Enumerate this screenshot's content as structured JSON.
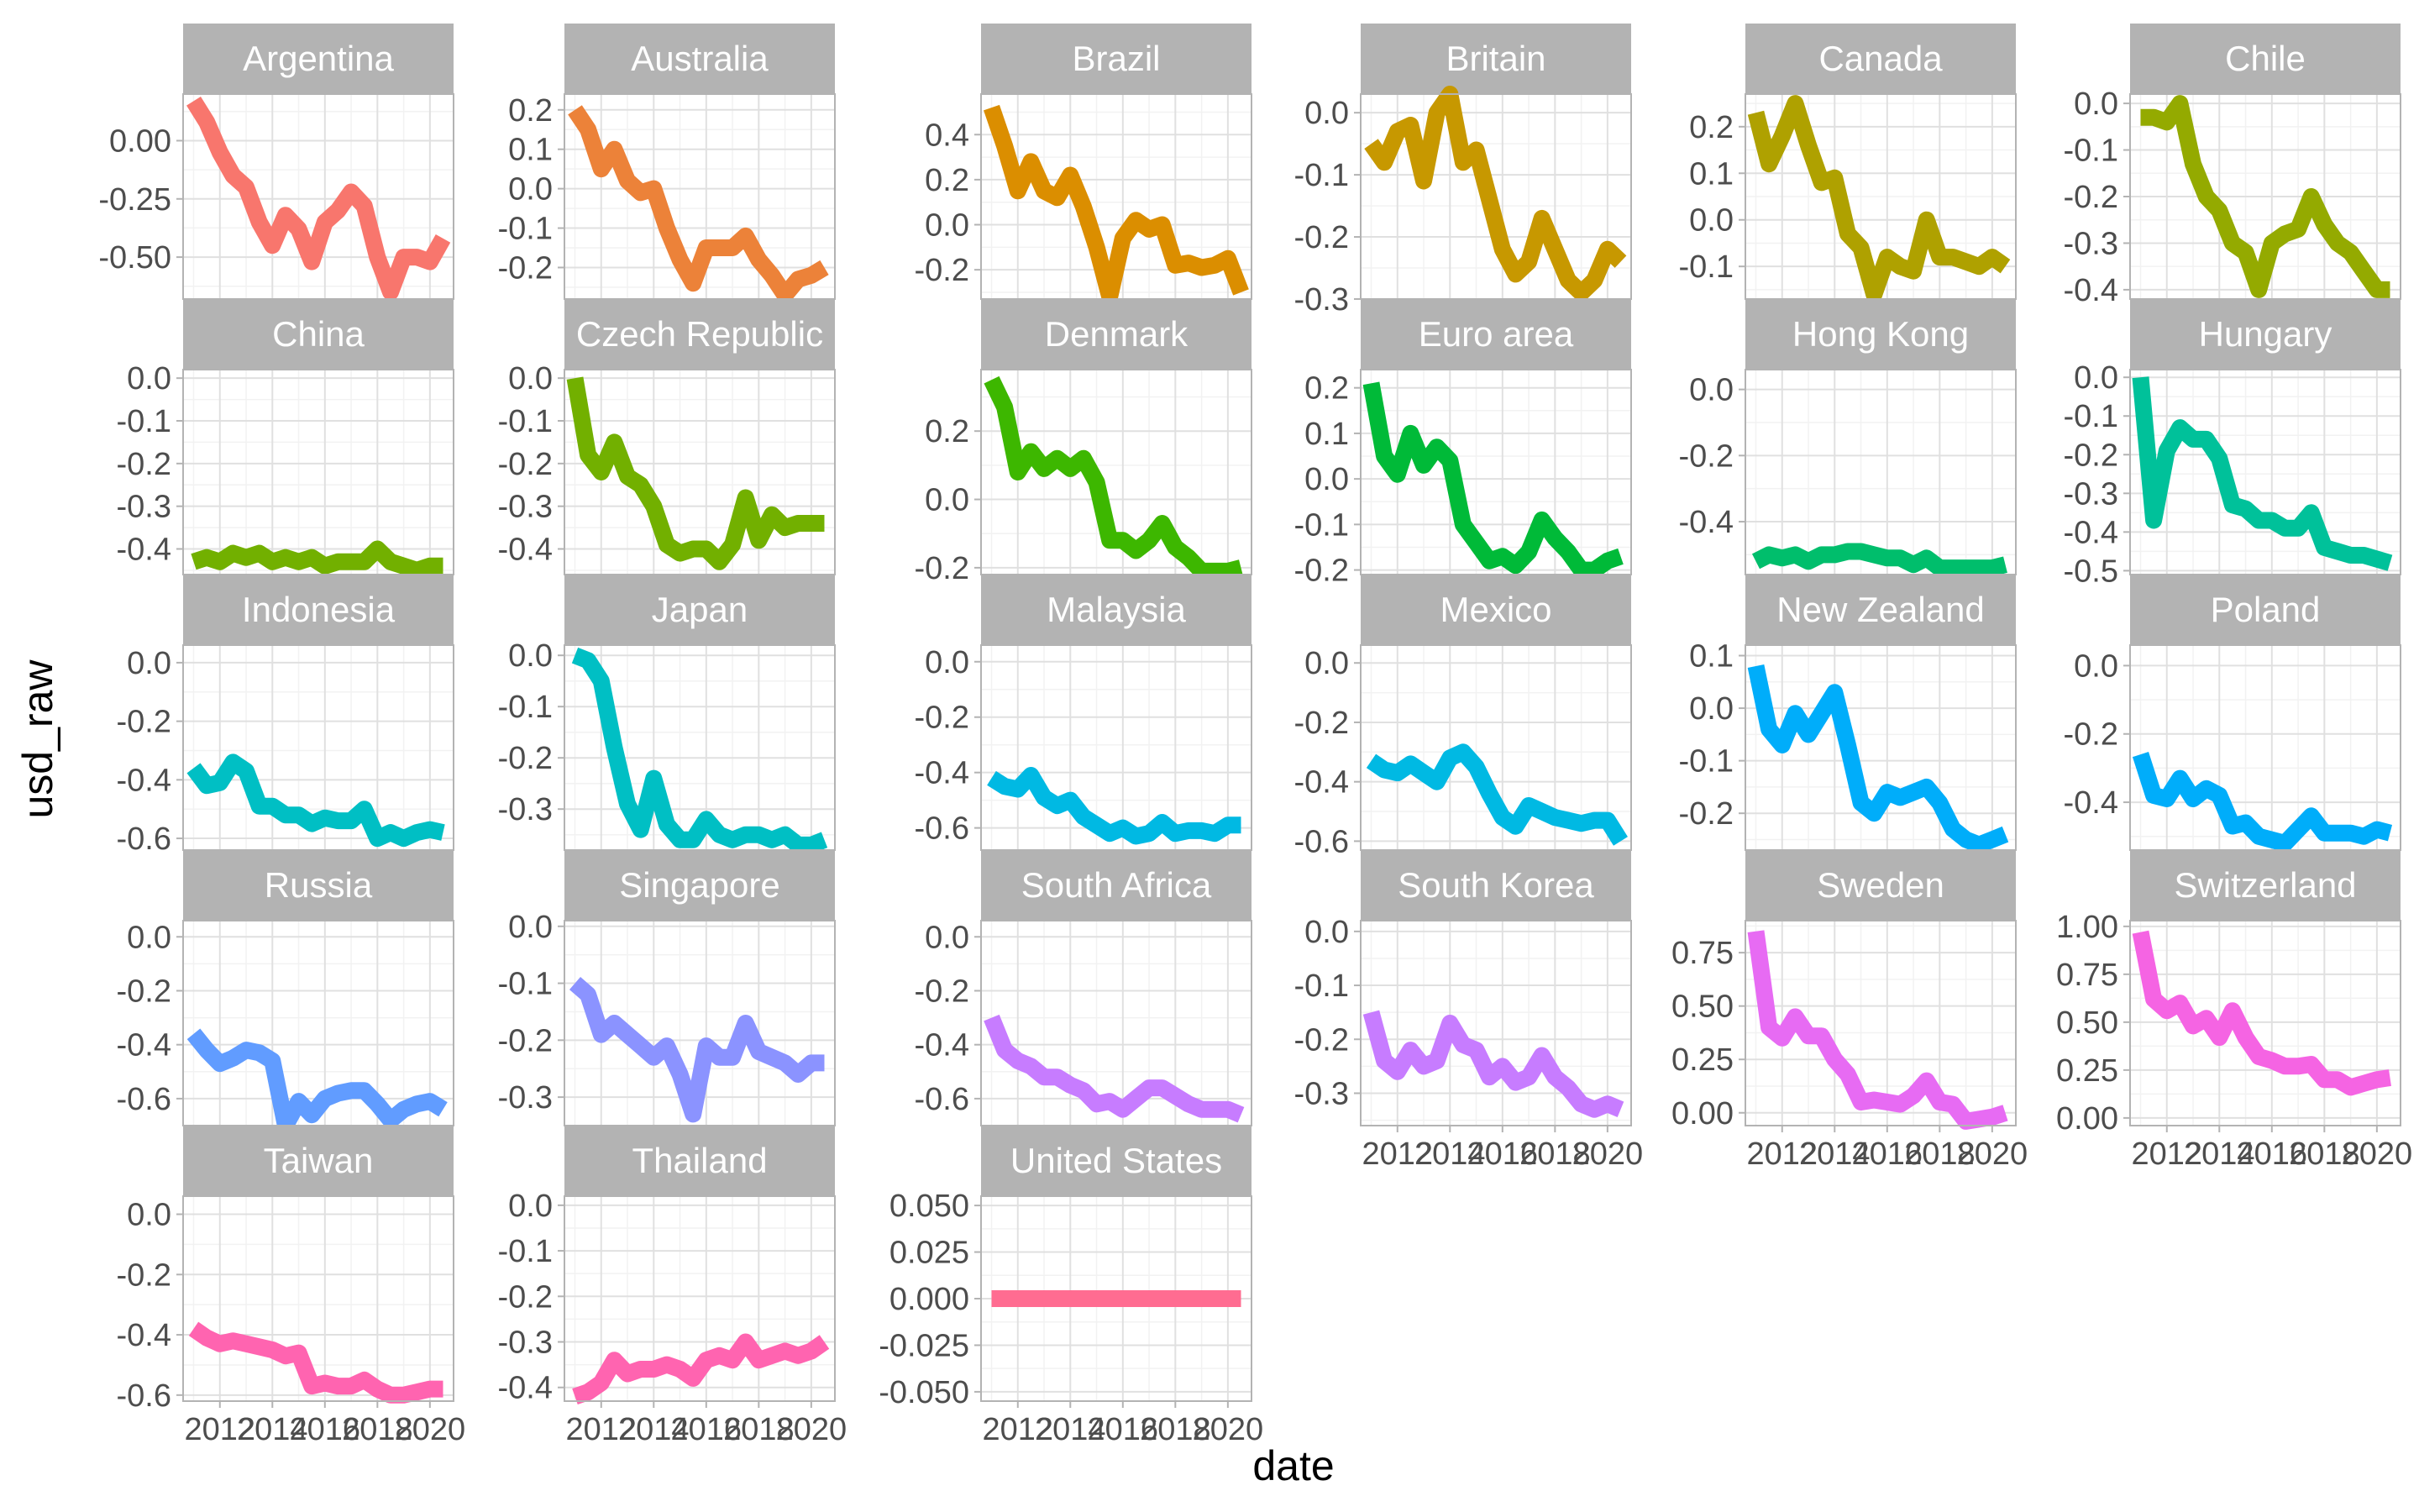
{
  "chart_data": {
    "type": "line",
    "xlabel": "date",
    "ylabel": "usd_raw",
    "x": [
      2011.0,
      2011.5,
      2012.0,
      2012.5,
      2013.0,
      2013.5,
      2014.0,
      2014.5,
      2015.0,
      2015.5,
      2016.0,
      2016.5,
      2017.0,
      2017.5,
      2018.0,
      2018.5,
      2019.0,
      2019.5,
      2020.0,
      2020.5
    ],
    "x_ticks": [
      2012,
      2014,
      2016,
      2018,
      2020
    ],
    "xlim": [
      2010.6,
      2020.9
    ],
    "grid": true,
    "legend": "none",
    "panels": [
      {
        "name": "Argentina",
        "color": "#F8766D",
        "ylim": [
          -0.68,
          0.2
        ],
        "y_ticks": [
          0.0,
          -0.25,
          -0.5
        ],
        "y_tick_labels": [
          "0.00",
          "-0.25",
          "-0.50"
        ],
        "values": [
          0.17,
          0.08,
          -0.05,
          -0.15,
          -0.2,
          -0.35,
          -0.45,
          -0.32,
          -0.38,
          -0.52,
          -0.35,
          -0.3,
          -0.22,
          -0.28,
          -0.5,
          -0.65,
          -0.5,
          -0.5,
          -0.52,
          -0.42
        ]
      },
      {
        "name": "Australia",
        "color": "#EC8239",
        "ylim": [
          -0.28,
          0.24
        ],
        "y_ticks": [
          0.2,
          0.1,
          0.0,
          -0.1,
          -0.2
        ],
        "y_tick_labels": [
          "0.2",
          "0.1",
          "0.0",
          "-0.1",
          "-0.2"
        ],
        "values": [
          0.2,
          0.15,
          0.05,
          0.1,
          0.02,
          -0.01,
          0.0,
          -0.1,
          -0.18,
          -0.24,
          -0.15,
          -0.15,
          -0.15,
          -0.12,
          -0.18,
          -0.22,
          -0.27,
          -0.23,
          -0.22,
          -0.2
        ]
      },
      {
        "name": "Brazil",
        "color": "#DB8E00",
        "ylim": [
          -0.33,
          0.58
        ],
        "y_ticks": [
          0.4,
          0.2,
          0.0,
          -0.2
        ],
        "y_tick_labels": [
          "0.4",
          "0.2",
          "0.0",
          "-0.2"
        ],
        "values": [
          0.52,
          0.35,
          0.15,
          0.28,
          0.15,
          0.12,
          0.22,
          0.08,
          -0.1,
          -0.32,
          -0.06,
          0.02,
          -0.02,
          0.0,
          -0.18,
          -0.17,
          -0.19,
          -0.18,
          -0.15,
          -0.3
        ]
      },
      {
        "name": "Britain",
        "color": "#C79800",
        "ylim": [
          -0.3,
          0.03
        ],
        "y_ticks": [
          0.0,
          -0.1,
          -0.2,
          -0.3
        ],
        "y_tick_labels": [
          "0.0",
          "-0.1",
          "-0.2",
          "-0.3"
        ],
        "values": [
          -0.05,
          -0.08,
          -0.03,
          -0.02,
          -0.11,
          0.0,
          0.03,
          -0.08,
          -0.06,
          -0.14,
          -0.22,
          -0.26,
          -0.24,
          -0.17,
          -0.22,
          -0.27,
          -0.29,
          -0.27,
          -0.22,
          -0.24
        ]
      },
      {
        "name": "Canada",
        "color": "#AFA100",
        "ylim": [
          -0.17,
          0.27
        ],
        "y_ticks": [
          0.2,
          0.1,
          0.0,
          -0.1
        ],
        "y_tick_labels": [
          "0.2",
          "0.1",
          "0.0",
          "-0.1"
        ],
        "values": [
          0.23,
          0.12,
          0.18,
          0.25,
          0.16,
          0.08,
          0.09,
          -0.03,
          -0.06,
          -0.16,
          -0.08,
          -0.1,
          -0.11,
          0.0,
          -0.08,
          -0.08,
          -0.09,
          -0.1,
          -0.08,
          -0.1
        ]
      },
      {
        "name": "Chile",
        "color": "#94AA00",
        "ylim": [
          -0.42,
          0.02
        ],
        "y_ticks": [
          0.0,
          -0.1,
          -0.2,
          -0.3,
          -0.4
        ],
        "y_tick_labels": [
          "0.0",
          "-0.1",
          "-0.2",
          "-0.3",
          "-0.4"
        ],
        "values": [
          -0.03,
          -0.03,
          -0.04,
          0.0,
          -0.13,
          -0.2,
          -0.23,
          -0.3,
          -0.32,
          -0.4,
          -0.3,
          -0.28,
          -0.27,
          -0.2,
          -0.26,
          -0.3,
          -0.32,
          -0.36,
          -0.4,
          -0.4
        ]
      },
      {
        "name": "China",
        "color": "#72B000",
        "ylim": [
          -0.46,
          0.02
        ],
        "y_ticks": [
          0.0,
          -0.1,
          -0.2,
          -0.3,
          -0.4
        ],
        "y_tick_labels": [
          "0.0",
          "-0.1",
          "-0.2",
          "-0.3",
          "-0.4"
        ],
        "values": [
          -0.43,
          -0.42,
          -0.43,
          -0.41,
          -0.42,
          -0.41,
          -0.43,
          -0.42,
          -0.43,
          -0.42,
          -0.44,
          -0.43,
          -0.43,
          -0.43,
          -0.4,
          -0.43,
          -0.44,
          -0.45,
          -0.44,
          -0.44
        ]
      },
      {
        "name": "Czech Republic",
        "color": "#72B000",
        "ylim": [
          -0.46,
          0.02
        ],
        "y_ticks": [
          0.0,
          -0.1,
          -0.2,
          -0.3,
          -0.4
        ],
        "y_tick_labels": [
          "0.0",
          "-0.1",
          "-0.2",
          "-0.3",
          "-0.4"
        ],
        "values": [
          0.0,
          -0.18,
          -0.22,
          -0.15,
          -0.23,
          -0.25,
          -0.3,
          -0.39,
          -0.41,
          -0.4,
          -0.4,
          -0.43,
          -0.39,
          -0.28,
          -0.38,
          -0.32,
          -0.35,
          -0.34,
          -0.34,
          -0.34
        ]
      },
      {
        "name": "Denmark",
        "color": "#3DB700",
        "ylim": [
          -0.22,
          0.38
        ],
        "y_ticks": [
          0.2,
          0.0,
          -0.2
        ],
        "y_tick_labels": [
          "0.2",
          "0.0",
          "-0.2"
        ],
        "values": [
          0.35,
          0.27,
          0.08,
          0.14,
          0.09,
          0.12,
          0.09,
          0.12,
          0.05,
          -0.12,
          -0.12,
          -0.15,
          -0.12,
          -0.07,
          -0.14,
          -0.17,
          -0.21,
          -0.21,
          -0.21,
          -0.2
        ]
      },
      {
        "name": "Euro area",
        "color": "#00BA38",
        "ylim": [
          -0.21,
          0.24
        ],
        "y_ticks": [
          0.2,
          0.1,
          0.0,
          -0.1,
          -0.2
        ],
        "y_tick_labels": [
          "0.2",
          "0.1",
          "0.0",
          "-0.1",
          "-0.2"
        ],
        "values": [
          0.21,
          0.05,
          0.01,
          0.1,
          0.03,
          0.07,
          0.04,
          -0.1,
          -0.14,
          -0.18,
          -0.17,
          -0.19,
          -0.16,
          -0.09,
          -0.13,
          -0.16,
          -0.2,
          -0.2,
          -0.18,
          -0.17
        ]
      },
      {
        "name": "Hong Kong",
        "color": "#00BE6C",
        "ylim": [
          -0.56,
          0.06
        ],
        "y_ticks": [
          0.0,
          -0.2,
          -0.4
        ],
        "y_tick_labels": [
          "0.0",
          "-0.2",
          "-0.4"
        ],
        "values": [
          -0.52,
          -0.5,
          -0.51,
          -0.5,
          -0.52,
          -0.5,
          -0.5,
          -0.49,
          -0.49,
          -0.5,
          -0.51,
          -0.51,
          -0.53,
          -0.51,
          -0.54,
          -0.54,
          -0.54,
          -0.54,
          -0.54,
          -0.53
        ]
      },
      {
        "name": "Hungary",
        "color": "#00C19A",
        "ylim": [
          -0.51,
          0.02
        ],
        "y_ticks": [
          0.0,
          -0.1,
          -0.2,
          -0.3,
          -0.4,
          -0.5
        ],
        "y_tick_labels": [
          "0.0",
          "-0.1",
          "-0.2",
          "-0.3",
          "-0.4",
          "-0.5"
        ],
        "values": [
          0.0,
          -0.37,
          -0.19,
          -0.13,
          -0.16,
          -0.16,
          -0.21,
          -0.33,
          -0.34,
          -0.37,
          -0.37,
          -0.39,
          -0.39,
          -0.35,
          -0.44,
          -0.45,
          -0.46,
          -0.46,
          -0.47,
          -0.48
        ]
      },
      {
        "name": "Indonesia",
        "color": "#00BFC4",
        "ylim": [
          -0.64,
          0.06
        ],
        "y_ticks": [
          0.0,
          -0.2,
          -0.4,
          -0.6
        ],
        "y_tick_labels": [
          "0.0",
          "-0.2",
          "-0.4",
          "-0.6"
        ],
        "values": [
          -0.36,
          -0.42,
          -0.41,
          -0.34,
          -0.37,
          -0.49,
          -0.49,
          -0.52,
          -0.52,
          -0.55,
          -0.53,
          -0.54,
          -0.54,
          -0.5,
          -0.6,
          -0.58,
          -0.6,
          -0.58,
          -0.57,
          -0.58
        ]
      },
      {
        "name": "Japan",
        "color": "#00BFC4",
        "ylim": [
          -0.38,
          0.02
        ],
        "y_ticks": [
          0.0,
          -0.1,
          -0.2,
          -0.3
        ],
        "y_tick_labels": [
          "0.0",
          "-0.1",
          "-0.2",
          "-0.3"
        ],
        "values": [
          0.0,
          -0.01,
          -0.05,
          -0.18,
          -0.29,
          -0.34,
          -0.24,
          -0.33,
          -0.36,
          -0.36,
          -0.32,
          -0.35,
          -0.36,
          -0.35,
          -0.35,
          -0.36,
          -0.35,
          -0.37,
          -0.37,
          -0.36
        ]
      },
      {
        "name": "Malaysia",
        "color": "#00B9E3",
        "ylim": [
          -0.68,
          0.06
        ],
        "y_ticks": [
          0.0,
          -0.2,
          -0.4,
          -0.6
        ],
        "y_tick_labels": [
          "0.0",
          "-0.2",
          "-0.4",
          "-0.6"
        ],
        "values": [
          -0.42,
          -0.45,
          -0.46,
          -0.41,
          -0.49,
          -0.52,
          -0.5,
          -0.56,
          -0.59,
          -0.62,
          -0.6,
          -0.63,
          -0.62,
          -0.58,
          -0.62,
          -0.61,
          -0.61,
          -0.62,
          -0.59,
          -0.59
        ]
      },
      {
        "name": "Mexico",
        "color": "#00B9E3",
        "ylim": [
          -0.63,
          0.06
        ],
        "y_ticks": [
          0.0,
          -0.2,
          -0.4,
          -0.6
        ],
        "y_tick_labels": [
          "0.0",
          "-0.2",
          "-0.4",
          "-0.6"
        ],
        "values": [
          -0.33,
          -0.36,
          -0.37,
          -0.34,
          -0.37,
          -0.4,
          -0.32,
          -0.3,
          -0.35,
          -0.44,
          -0.52,
          -0.55,
          -0.48,
          -0.5,
          -0.52,
          -0.53,
          -0.54,
          -0.53,
          -0.53,
          -0.6
        ]
      },
      {
        "name": "New Zealand",
        "color": "#00ADFA",
        "ylim": [
          -0.27,
          0.12
        ],
        "y_ticks": [
          0.1,
          0.0,
          -0.1,
          -0.2
        ],
        "y_tick_labels": [
          "0.1",
          "0.0",
          "-0.1",
          "-0.2"
        ],
        "values": [
          0.08,
          -0.04,
          -0.07,
          -0.01,
          -0.05,
          -0.01,
          0.03,
          -0.07,
          -0.18,
          -0.2,
          -0.16,
          -0.17,
          -0.16,
          -0.15,
          -0.18,
          -0.23,
          -0.25,
          -0.26,
          -0.25,
          -0.24
        ]
      },
      {
        "name": "Poland",
        "color": "#00ADFA",
        "ylim": [
          -0.54,
          0.06
        ],
        "y_ticks": [
          0.0,
          -0.2,
          -0.4
        ],
        "y_tick_labels": [
          "0.0",
          "-0.2",
          "-0.4"
        ],
        "values": [
          -0.26,
          -0.38,
          -0.39,
          -0.33,
          -0.39,
          -0.36,
          -0.38,
          -0.47,
          -0.46,
          -0.5,
          -0.51,
          -0.52,
          -0.48,
          -0.44,
          -0.49,
          -0.49,
          -0.49,
          -0.5,
          -0.48,
          -0.49
        ]
      },
      {
        "name": "Russia",
        "color": "#619CFF",
        "ylim": [
          -0.7,
          0.06
        ],
        "y_ticks": [
          0.0,
          -0.2,
          -0.4,
          -0.6
        ],
        "y_tick_labels": [
          "0.0",
          "-0.2",
          "-0.4",
          "-0.6"
        ],
        "values": [
          -0.36,
          -0.42,
          -0.47,
          -0.45,
          -0.42,
          -0.43,
          -0.46,
          -0.7,
          -0.61,
          -0.66,
          -0.6,
          -0.58,
          -0.57,
          -0.57,
          -0.62,
          -0.68,
          -0.64,
          -0.62,
          -0.61,
          -0.64
        ]
      },
      {
        "name": "Singapore",
        "color": "#8B93FF",
        "ylim": [
          -0.35,
          0.01
        ],
        "y_ticks": [
          0.0,
          -0.1,
          -0.2,
          -0.3
        ],
        "y_tick_labels": [
          "0.0",
          "-0.1",
          "-0.2",
          "-0.3"
        ],
        "values": [
          -0.1,
          -0.12,
          -0.19,
          -0.17,
          -0.19,
          -0.21,
          -0.23,
          -0.21,
          -0.26,
          -0.33,
          -0.21,
          -0.23,
          -0.23,
          -0.17,
          -0.22,
          -0.23,
          -0.24,
          -0.26,
          -0.24,
          -0.24
        ]
      },
      {
        "name": "South Africa",
        "color": "#C77CFF",
        "ylim": [
          -0.7,
          0.06
        ],
        "y_ticks": [
          0.0,
          -0.2,
          -0.4,
          -0.6
        ],
        "y_tick_labels": [
          "0.0",
          "-0.2",
          "-0.4",
          "-0.6"
        ],
        "values": [
          -0.3,
          -0.42,
          -0.46,
          -0.48,
          -0.52,
          -0.52,
          -0.55,
          -0.57,
          -0.62,
          -0.61,
          -0.64,
          -0.6,
          -0.56,
          -0.56,
          -0.59,
          -0.62,
          -0.64,
          -0.64,
          -0.64,
          -0.66
        ]
      },
      {
        "name": "South Korea",
        "color": "#C77CFF",
        "ylim": [
          -0.36,
          0.02
        ],
        "y_ticks": [
          0.0,
          -0.1,
          -0.2,
          -0.3
        ],
        "y_tick_labels": [
          "0.0",
          "-0.1",
          "-0.2",
          "-0.3"
        ],
        "values": [
          -0.15,
          -0.24,
          -0.26,
          -0.22,
          -0.25,
          -0.24,
          -0.17,
          -0.21,
          -0.22,
          -0.27,
          -0.25,
          -0.28,
          -0.27,
          -0.23,
          -0.27,
          -0.29,
          -0.32,
          -0.33,
          -0.32,
          -0.33
        ]
      },
      {
        "name": "Sweden",
        "color": "#E76BF3",
        "ylim": [
          -0.06,
          0.9
        ],
        "y_ticks": [
          0.75,
          0.5,
          0.25,
          0.0
        ],
        "y_tick_labels": [
          "0.75",
          "0.50",
          "0.25",
          "0.00"
        ],
        "values": [
          0.85,
          0.4,
          0.35,
          0.45,
          0.36,
          0.36,
          0.25,
          0.18,
          0.05,
          0.06,
          0.05,
          0.04,
          0.08,
          0.15,
          0.05,
          0.04,
          -0.04,
          -0.03,
          -0.02,
          0.0
        ]
      },
      {
        "name": "Switzerland",
        "color": "#F564E3",
        "ylim": [
          -0.04,
          1.03
        ],
        "y_ticks": [
          1.0,
          0.75,
          0.5,
          0.25,
          0.0
        ],
        "y_tick_labels": [
          "1.00",
          "0.75",
          "0.50",
          "0.25",
          "0.00"
        ],
        "values": [
          0.97,
          0.62,
          0.56,
          0.6,
          0.48,
          0.52,
          0.42,
          0.56,
          0.42,
          0.32,
          0.3,
          0.27,
          0.27,
          0.28,
          0.2,
          0.2,
          0.16,
          0.18,
          0.2,
          0.21
        ]
      },
      {
        "name": "Taiwan",
        "color": "#FF64B0",
        "ylim": [
          -0.62,
          0.06
        ],
        "y_ticks": [
          0.0,
          -0.2,
          -0.4,
          -0.6
        ],
        "y_tick_labels": [
          "0.0",
          "-0.2",
          "-0.4",
          "-0.6"
        ],
        "values": [
          -0.38,
          -0.41,
          -0.43,
          -0.42,
          -0.43,
          -0.44,
          -0.45,
          -0.47,
          -0.46,
          -0.57,
          -0.56,
          -0.57,
          -0.57,
          -0.55,
          -0.58,
          -0.6,
          -0.6,
          -0.59,
          -0.58,
          -0.58
        ]
      },
      {
        "name": "Thailand",
        "color": "#FF64B0",
        "ylim": [
          -0.43,
          0.02
        ],
        "y_ticks": [
          0.0,
          -0.1,
          -0.2,
          -0.3,
          -0.4
        ],
        "y_tick_labels": [
          "0.0",
          "-0.1",
          "-0.2",
          "-0.3",
          "-0.4"
        ],
        "values": [
          -0.42,
          -0.41,
          -0.39,
          -0.34,
          -0.37,
          -0.36,
          -0.36,
          -0.35,
          -0.36,
          -0.38,
          -0.34,
          -0.33,
          -0.34,
          -0.3,
          -0.34,
          -0.33,
          -0.32,
          -0.33,
          -0.32,
          -0.3
        ]
      },
      {
        "name": "United States",
        "color": "#FF6C91",
        "ylim": [
          -0.055,
          0.055
        ],
        "y_ticks": [
          0.05,
          0.025,
          0.0,
          -0.025,
          -0.05
        ],
        "y_tick_labels": [
          "0.050",
          "0.025",
          "0.000",
          "-0.025",
          "-0.050"
        ],
        "values": [
          0.0,
          0.0,
          0.0,
          0.0,
          0.0,
          0.0,
          0.0,
          0.0,
          0.0,
          0.0,
          0.0,
          0.0,
          0.0,
          0.0,
          0.0,
          0.0,
          0.0,
          0.0,
          0.0,
          0.0
        ]
      }
    ]
  }
}
